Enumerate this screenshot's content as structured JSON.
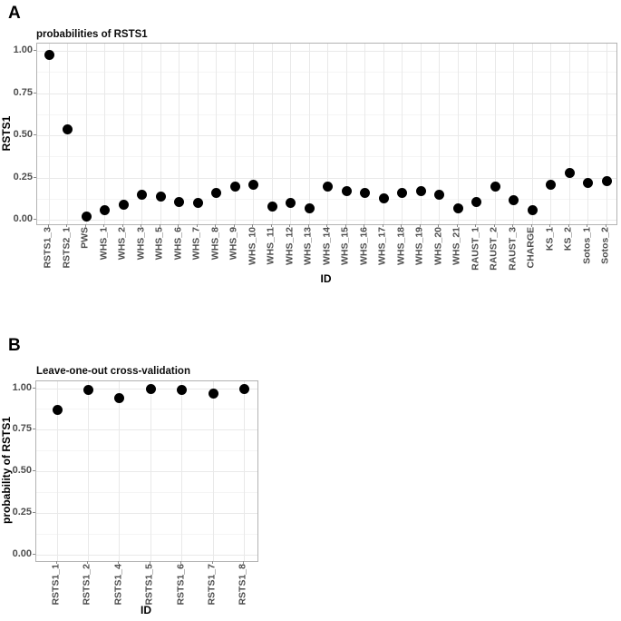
{
  "panels": [
    {
      "label": "A"
    },
    {
      "label": "B"
    }
  ],
  "colors": {
    "point": "#000000",
    "grid_major": "#e9e9e9",
    "grid_minor": "#f5f5f5",
    "panel_border": "#b3b3b3",
    "tick_text": "#4d4d4d",
    "background": "#ffffff"
  },
  "chart_data": [
    {
      "type": "scatter",
      "title": "probabilities of RSTS1",
      "xlabel": "ID",
      "ylabel": "RSTS1",
      "ylim": [
        0,
        1
      ],
      "yticks": [
        "0.00",
        "0.25",
        "0.50",
        "0.75",
        "1.00"
      ],
      "grid": "major+minor horizontal, major vertical",
      "legend": "none",
      "categories": [
        "RSTS1_3",
        "RSTS2_1",
        "PWS",
        "WHS_1",
        "WHS_2",
        "WHS_3",
        "WHS_5",
        "WHS_6",
        "WHS_7",
        "WHS_8",
        "WHS_9",
        "WHS_10",
        "WHS_11",
        "WHS_12",
        "WHS_13",
        "WHS_14",
        "WHS_15",
        "WHS_16",
        "WHS_17",
        "WHS_18",
        "WHS_19",
        "WHS_20",
        "WHS_21",
        "RAUST_1",
        "RAUST_2",
        "RAUST_3",
        "CHARGE",
        "KS_1",
        "KS_2",
        "Sotos_1",
        "Sotos_2"
      ],
      "values": [
        0.98,
        0.54,
        0.02,
        0.06,
        0.09,
        0.15,
        0.14,
        0.11,
        0.1,
        0.16,
        0.2,
        0.21,
        0.08,
        0.1,
        0.07,
        0.2,
        0.17,
        0.16,
        0.13,
        0.16,
        0.17,
        0.15,
        0.07,
        0.11,
        0.2,
        0.12,
        0.06,
        0.21,
        0.28,
        0.22,
        0.23
      ]
    },
    {
      "type": "scatter",
      "title": "Leave-one-out cross-validation",
      "xlabel": "ID",
      "ylabel": "probability of RSTS1",
      "ylim": [
        0,
        1
      ],
      "yticks": [
        "0.00",
        "0.25",
        "0.50",
        "0.75",
        "1.00"
      ],
      "grid": "major+minor horizontal, major vertical",
      "legend": "none",
      "categories": [
        "RSTS1_1",
        "RSTS1_2",
        "RSTS1_4",
        "RSTS1_5",
        "RSTS1_6",
        "RSTS1_7",
        "RSTS1_8"
      ],
      "values": [
        0.87,
        0.99,
        0.94,
        1.0,
        0.99,
        0.97,
        1.0
      ]
    }
  ]
}
